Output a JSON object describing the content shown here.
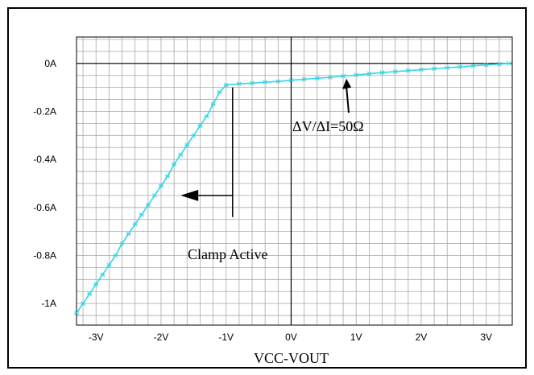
{
  "chart_data": {
    "type": "line",
    "title": "",
    "xlabel": "VCC-VOUT",
    "ylabel": "",
    "xlim": [
      -3.3,
      3.4
    ],
    "ylim": [
      -1.09,
      0.11
    ],
    "grid": true,
    "x_ticks": [
      {
        "value": -3,
        "label": "-3V"
      },
      {
        "value": -2,
        "label": "-2V"
      },
      {
        "value": -1,
        "label": "-1V"
      },
      {
        "value": 0,
        "label": "0V"
      },
      {
        "value": 1,
        "label": "1V"
      },
      {
        "value": 2,
        "label": "2V"
      },
      {
        "value": 3,
        "label": "3V"
      }
    ],
    "y_ticks": [
      {
        "value": 0,
        "label": "0A"
      },
      {
        "value": -0.2,
        "label": "-0.2A"
      },
      {
        "value": -0.4,
        "label": "-0.4A"
      },
      {
        "value": -0.6,
        "label": "-0.6A"
      },
      {
        "value": -0.8,
        "label": "-0.8A"
      },
      {
        "value": -1.0,
        "label": "-1A"
      }
    ],
    "series": [
      {
        "color": "#33d6e6",
        "points": [
          {
            "x": -3.3,
            "y": -1.04
          },
          {
            "x": -3.2,
            "y": -1.0
          },
          {
            "x": -3.1,
            "y": -0.96
          },
          {
            "x": -3.0,
            "y": -0.92
          },
          {
            "x": -2.9,
            "y": -0.88
          },
          {
            "x": -2.8,
            "y": -0.84
          },
          {
            "x": -2.7,
            "y": -0.8
          },
          {
            "x": -2.6,
            "y": -0.75
          },
          {
            "x": -2.5,
            "y": -0.71
          },
          {
            "x": -2.4,
            "y": -0.67
          },
          {
            "x": -2.3,
            "y": -0.63
          },
          {
            "x": -2.2,
            "y": -0.59
          },
          {
            "x": -2.1,
            "y": -0.55
          },
          {
            "x": -2.0,
            "y": -0.51
          },
          {
            "x": -1.9,
            "y": -0.47
          },
          {
            "x": -1.8,
            "y": -0.42
          },
          {
            "x": -1.7,
            "y": -0.38
          },
          {
            "x": -1.6,
            "y": -0.34
          },
          {
            "x": -1.5,
            "y": -0.3
          },
          {
            "x": -1.4,
            "y": -0.26
          },
          {
            "x": -1.3,
            "y": -0.22
          },
          {
            "x": -1.2,
            "y": -0.17
          },
          {
            "x": -1.1,
            "y": -0.12
          },
          {
            "x": -1.0,
            "y": -0.09
          },
          {
            "x": -0.8,
            "y": -0.085
          },
          {
            "x": -0.6,
            "y": -0.082
          },
          {
            "x": -0.4,
            "y": -0.078
          },
          {
            "x": -0.2,
            "y": -0.075
          },
          {
            "x": 0.0,
            "y": -0.07
          },
          {
            "x": 0.2,
            "y": -0.066
          },
          {
            "x": 0.4,
            "y": -0.062
          },
          {
            "x": 0.6,
            "y": -0.058
          },
          {
            "x": 0.8,
            "y": -0.053
          },
          {
            "x": 1.0,
            "y": -0.048
          },
          {
            "x": 1.2,
            "y": -0.043
          },
          {
            "x": 1.4,
            "y": -0.038
          },
          {
            "x": 1.6,
            "y": -0.034
          },
          {
            "x": 1.8,
            "y": -0.03
          },
          {
            "x": 2.0,
            "y": -0.026
          },
          {
            "x": 2.2,
            "y": -0.022
          },
          {
            "x": 2.4,
            "y": -0.018
          },
          {
            "x": 2.6,
            "y": -0.014
          },
          {
            "x": 2.8,
            "y": -0.01
          },
          {
            "x": 3.0,
            "y": -0.006
          },
          {
            "x": 3.2,
            "y": -0.003
          },
          {
            "x": 3.35,
            "y": 0.0
          }
        ]
      }
    ],
    "annotations": [
      {
        "text": "ΔV/ΔI=50Ω",
        "target": {
          "x": 0.85,
          "y": -0.05
        }
      },
      {
        "text": "Clamp Active",
        "marker_x": -0.9,
        "arrow_to_x": -1.7,
        "arrow_y": -0.55
      }
    ]
  }
}
